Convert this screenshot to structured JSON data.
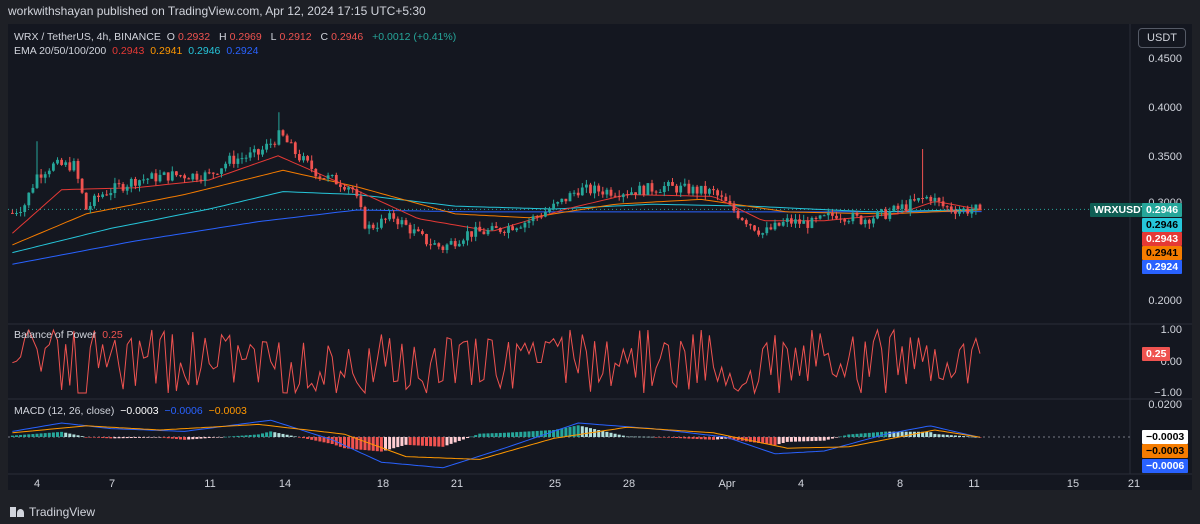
{
  "header": {
    "published": "workwithshayan published on TradingView.com, Apr 12, 2024 17:15 UTC+5:30"
  },
  "currency_button": "USDT",
  "legend": {
    "title": "WRX / TetherUS, 4h, BINANCE",
    "o_label": "O",
    "o": "0.2932",
    "h_label": "H",
    "h": "0.2969",
    "l_label": "L",
    "l": "0.2912",
    "c_label": "C",
    "c": "0.2946",
    "change": "+0.0012 (+0.41%)",
    "ema_label": "EMA 20/50/100/200",
    "ema20": "0.2943",
    "ema50": "0.2941",
    "ema100": "0.2946",
    "ema200": "0.2924",
    "bop_label": "Balance of Power",
    "bop": "0.25",
    "macd_label": "MACD (12, 26, close)",
    "macd_hist": "−0.0003",
    "macd_line": "−0.0006",
    "macd_signal": "−0.0003"
  },
  "price_axis": [
    "0.4500",
    "0.4000",
    "0.3500",
    "0.3000",
    "0.2000"
  ],
  "bop_axis": [
    "1.00",
    "0.00",
    "−1.00"
  ],
  "macd_axis": [
    "0.0200"
  ],
  "tags": {
    "symbol": "WRXUSDT",
    "price": "0.2946",
    "ema100": "0.2946",
    "ema20": "0.2943",
    "ema50": "0.2941",
    "ema200": "0.2924",
    "bop": "0.25",
    "macd_hist": "−0.0003",
    "macd_signal": "−0.0003",
    "macd_line": "−0.0006"
  },
  "x_axis": [
    "4",
    "7",
    "11",
    "14",
    "18",
    "21",
    "25",
    "28",
    "Apr",
    "4",
    "8",
    "11",
    "15",
    "21"
  ],
  "footer": {
    "brand": "TradingView"
  },
  "colors": {
    "up": "#26a69a",
    "down": "#ef5350",
    "ema20": "#e53935",
    "ema50": "#f57c00",
    "ema100": "#26c6da",
    "ema200": "#2962ff",
    "bop": "#ef5350",
    "macd": "#2962ff",
    "signal": "#ff9800",
    "hist_up_strong": "#26a69a",
    "hist_up_weak": "#b2dfdb",
    "hist_down_strong": "#ef5350",
    "hist_down_weak": "#ffcdd2"
  },
  "chart_data": {
    "type": "candlestick",
    "symbol": "WRX / TetherUS",
    "interval": "4h",
    "x_ticks": [
      "4",
      "7",
      "11",
      "14",
      "18",
      "21",
      "25",
      "28",
      "Apr",
      "4",
      "8",
      "11",
      "15",
      "21"
    ],
    "y_ticks": [
      0.45,
      0.4,
      0.35,
      0.3,
      0.2
    ],
    "ylim": [
      0.183,
      0.476
    ],
    "last_price": 0.2946,
    "ema": {
      "ema20": 0.2943,
      "ema50": 0.2941,
      "ema100": 0.2946,
      "ema200": 0.2924
    },
    "price_path": [
      {
        "day": 3.0,
        "p": 0.291
      },
      {
        "day": 3.5,
        "p": 0.3
      },
      {
        "day": 4.0,
        "p": 0.33
      },
      {
        "day": 4.6,
        "p": 0.34
      },
      {
        "day": 5.5,
        "p": 0.34
      },
      {
        "day": 6.0,
        "p": 0.295
      },
      {
        "day": 6.6,
        "p": 0.31
      },
      {
        "day": 8.0,
        "p": 0.325
      },
      {
        "day": 9.5,
        "p": 0.33
      },
      {
        "day": 11.0,
        "p": 0.33
      },
      {
        "day": 11.8,
        "p": 0.345
      },
      {
        "day": 13.0,
        "p": 0.352
      },
      {
        "day": 13.9,
        "p": 0.372
      },
      {
        "day": 14.6,
        "p": 0.35
      },
      {
        "day": 15.5,
        "p": 0.33
      },
      {
        "day": 16.8,
        "p": 0.318
      },
      {
        "day": 17.4,
        "p": 0.275
      },
      {
        "day": 18.5,
        "p": 0.287
      },
      {
        "day": 19.8,
        "p": 0.262
      },
      {
        "day": 20.5,
        "p": 0.255
      },
      {
        "day": 21.5,
        "p": 0.27
      },
      {
        "day": 22.5,
        "p": 0.272
      },
      {
        "day": 24.0,
        "p": 0.283
      },
      {
        "day": 25.2,
        "p": 0.3
      },
      {
        "day": 26.0,
        "p": 0.315
      },
      {
        "day": 28.0,
        "p": 0.313
      },
      {
        "day": 29.5,
        "p": 0.318
      },
      {
        "day": 31.5,
        "p": 0.312
      },
      {
        "day": 32.5,
        "p": 0.29
      },
      {
        "day": 33.5,
        "p": 0.27
      },
      {
        "day": 34.5,
        "p": 0.282
      },
      {
        "day": 35.5,
        "p": 0.28
      },
      {
        "day": 36.5,
        "p": 0.29
      },
      {
        "day": 37.5,
        "p": 0.284
      },
      {
        "day": 38.5,
        "p": 0.29
      },
      {
        "day": 39.5,
        "p": 0.3
      },
      {
        "day": 40.3,
        "p": 0.308
      },
      {
        "day": 40.8,
        "p": 0.298
      },
      {
        "day": 41.5,
        "p": 0.294
      },
      {
        "day": 42.4,
        "p": 0.2946
      }
    ],
    "ema_paths": {
      "ema20": [
        {
          "day": 3.0,
          "p": 0.27
        },
        {
          "day": 5.0,
          "p": 0.315
        },
        {
          "day": 8.0,
          "p": 0.317
        },
        {
          "day": 11.0,
          "p": 0.325
        },
        {
          "day": 13.8,
          "p": 0.35
        },
        {
          "day": 16.5,
          "p": 0.32
        },
        {
          "day": 19.5,
          "p": 0.285
        },
        {
          "day": 22.5,
          "p": 0.272
        },
        {
          "day": 25.5,
          "p": 0.295
        },
        {
          "day": 28.0,
          "p": 0.31
        },
        {
          "day": 31.5,
          "p": 0.308
        },
        {
          "day": 33.5,
          "p": 0.283
        },
        {
          "day": 36.0,
          "p": 0.283
        },
        {
          "day": 39.0,
          "p": 0.29
        },
        {
          "day": 40.5,
          "p": 0.303
        },
        {
          "day": 42.4,
          "p": 0.2943
        }
      ],
      "ema50": [
        {
          "day": 3.0,
          "p": 0.258
        },
        {
          "day": 6.0,
          "p": 0.29
        },
        {
          "day": 10.0,
          "p": 0.31
        },
        {
          "day": 14.0,
          "p": 0.335
        },
        {
          "day": 17.0,
          "p": 0.318
        },
        {
          "day": 21.0,
          "p": 0.29
        },
        {
          "day": 24.0,
          "p": 0.286
        },
        {
          "day": 27.5,
          "p": 0.3
        },
        {
          "day": 31.0,
          "p": 0.305
        },
        {
          "day": 34.5,
          "p": 0.292
        },
        {
          "day": 38.5,
          "p": 0.29
        },
        {
          "day": 42.4,
          "p": 0.2941
        }
      ],
      "ema100": [
        {
          "day": 3.0,
          "p": 0.25
        },
        {
          "day": 7.0,
          "p": 0.275
        },
        {
          "day": 11.0,
          "p": 0.295
        },
        {
          "day": 14.0,
          "p": 0.313
        },
        {
          "day": 17.0,
          "p": 0.31
        },
        {
          "day": 21.0,
          "p": 0.298
        },
        {
          "day": 25.0,
          "p": 0.295
        },
        {
          "day": 29.0,
          "p": 0.3
        },
        {
          "day": 33.0,
          "p": 0.298
        },
        {
          "day": 38.0,
          "p": 0.292
        },
        {
          "day": 42.4,
          "p": 0.2946
        }
      ],
      "ema200": [
        {
          "day": 3.0,
          "p": 0.238
        },
        {
          "day": 8.0,
          "p": 0.262
        },
        {
          "day": 13.0,
          "p": 0.282
        },
        {
          "day": 17.0,
          "p": 0.294
        },
        {
          "day": 22.0,
          "p": 0.292
        },
        {
          "day": 28.0,
          "p": 0.292
        },
        {
          "day": 34.0,
          "p": 0.292
        },
        {
          "day": 42.4,
          "p": 0.2924
        }
      ]
    },
    "bop": {
      "ylim": [
        -1.2,
        1.2
      ],
      "last": 0.25
    },
    "macd": {
      "params": "12, 26, close",
      "ylim": [
        -0.03,
        0.025
      ],
      "macd_path": [
        {
          "day": 3.0,
          "p": 0.004
        },
        {
          "day": 5.0,
          "p": 0.01
        },
        {
          "day": 7.0,
          "p": 0.006
        },
        {
          "day": 10.0,
          "p": 0.004
        },
        {
          "day": 13.5,
          "p": 0.012
        },
        {
          "day": 16.0,
          "p": -0.002
        },
        {
          "day": 18.0,
          "p": -0.018
        },
        {
          "day": 20.5,
          "p": -0.022
        },
        {
          "day": 23.0,
          "p": -0.008
        },
        {
          "day": 26.0,
          "p": 0.01
        },
        {
          "day": 29.0,
          "p": 0.006
        },
        {
          "day": 32.0,
          "p": 0.0
        },
        {
          "day": 34.0,
          "p": -0.012
        },
        {
          "day": 36.0,
          "p": -0.01
        },
        {
          "day": 38.5,
          "p": 0.002
        },
        {
          "day": 40.3,
          "p": 0.008
        },
        {
          "day": 42.4,
          "p": -0.0006
        }
      ],
      "signal_path": [
        {
          "day": 3.0,
          "p": 0.003
        },
        {
          "day": 6.0,
          "p": 0.008
        },
        {
          "day": 9.0,
          "p": 0.005
        },
        {
          "day": 13.0,
          "p": 0.009
        },
        {
          "day": 16.5,
          "p": 0.002
        },
        {
          "day": 19.0,
          "p": -0.014
        },
        {
          "day": 22.0,
          "p": -0.016
        },
        {
          "day": 25.0,
          "p": -0.001
        },
        {
          "day": 28.0,
          "p": 0.007
        },
        {
          "day": 31.5,
          "p": 0.003
        },
        {
          "day": 34.5,
          "p": -0.008
        },
        {
          "day": 37.0,
          "p": -0.007
        },
        {
          "day": 40.5,
          "p": 0.005
        },
        {
          "day": 42.4,
          "p": -0.0003
        }
      ]
    }
  }
}
